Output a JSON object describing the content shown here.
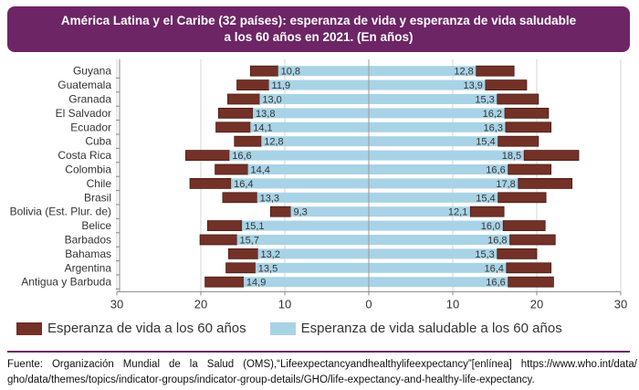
{
  "title": {
    "line1": "América Latina y el Caribe (32 países): esperanza de vida y esperanza de vida saludable",
    "line2": "a los 60 años en 2021. (En años)"
  },
  "colors": {
    "life": "#733127",
    "healthy": "#a8d3e6",
    "title_bg": "#6d2566"
  },
  "chart_data": {
    "type": "bar",
    "orientation": "horizontal-butterfly",
    "title": "América Latina y el Caribe (32 países): esperanza de vida y esperanza de vida saludable a los 60 años en 2021. (En años)",
    "categories": [
      "Guyana",
      "Guatemala",
      "Granada",
      "El Salvador",
      "Ecuador",
      "Cuba",
      "Costa Rica",
      "Colombia",
      "Chile",
      "Brasil",
      "Bolivia (Est. Plur. de)",
      "Belice",
      "Barbados",
      "Bahamas",
      "Argentina",
      "Antigua y Barbuda"
    ],
    "xlim": [
      -30,
      30
    ],
    "x_ticks": [
      -30,
      -20,
      -10,
      0,
      10,
      20,
      30
    ],
    "x_tick_labels": [
      "30",
      "20",
      "10",
      "0",
      "10",
      "20",
      "30"
    ],
    "grid": true,
    "legend_position": "bottom-left",
    "left": {
      "series": [
        {
          "name": "Esperanza de vida a los 60 años",
          "values": [
            14.1,
            15.7,
            16.8,
            17.9,
            18.2,
            16.0,
            21.8,
            18.3,
            21.3,
            17.4,
            11.7,
            19.2,
            20.1,
            16.7,
            17.0,
            19.5
          ]
        },
        {
          "name": "Esperanza de vida saludable a los 60 años",
          "values": [
            10.8,
            11.9,
            13.0,
            13.8,
            14.1,
            12.8,
            16.6,
            14.4,
            16.4,
            13.3,
            9.3,
            15.1,
            15.7,
            13.2,
            13.5,
            14.9
          ]
        }
      ]
    },
    "right": {
      "series": [
        {
          "name": "Esperanza de vida a los 60 años",
          "values": [
            17.3,
            18.8,
            20.2,
            21.4,
            21.7,
            20.2,
            25.0,
            21.7,
            24.2,
            21.1,
            16.1,
            21.0,
            22.2,
            20.0,
            21.7,
            22.0
          ]
        },
        {
          "name": "Esperanza de vida saludable a los 60 años",
          "values": [
            12.8,
            13.9,
            15.3,
            16.2,
            16.3,
            15.4,
            18.5,
            16.6,
            17.8,
            15.4,
            12.1,
            16.0,
            16.8,
            15.3,
            16.4,
            16.6
          ]
        }
      ]
    },
    "healthy_labels_left": [
      "10,8",
      "11,9",
      "13,0",
      "13,8",
      "14,1",
      "12,8",
      "16,6",
      "14,4",
      "16,4",
      "13,3",
      "9,3",
      "15,1",
      "15,7",
      "13,2",
      "13,5",
      "14,9"
    ],
    "healthy_labels_right": [
      "12,8",
      "13,9",
      "15,3",
      "16,2",
      "16,3",
      "15,4",
      "18,5",
      "16,6",
      "17,8",
      "15,4",
      "12,1",
      "16,0",
      "16,8",
      "15,3",
      "16,4",
      "16,6"
    ]
  },
  "legend": {
    "life": "Esperanza de vida a los 60 años",
    "healthy": "Esperanza de vida saludable a los 60 años"
  },
  "source": {
    "line1": "Fuente: Organización Mundial de la Salud (OMS),“Lifeexpectancyandhealthylifeexpectancy”[enlínea] https://www.who.int/data/",
    "line2": "gho/data/themes/topics/indicator-groups/indicator-group-details/GHO/life-expectancy-and-healthy-life-expectancy."
  }
}
